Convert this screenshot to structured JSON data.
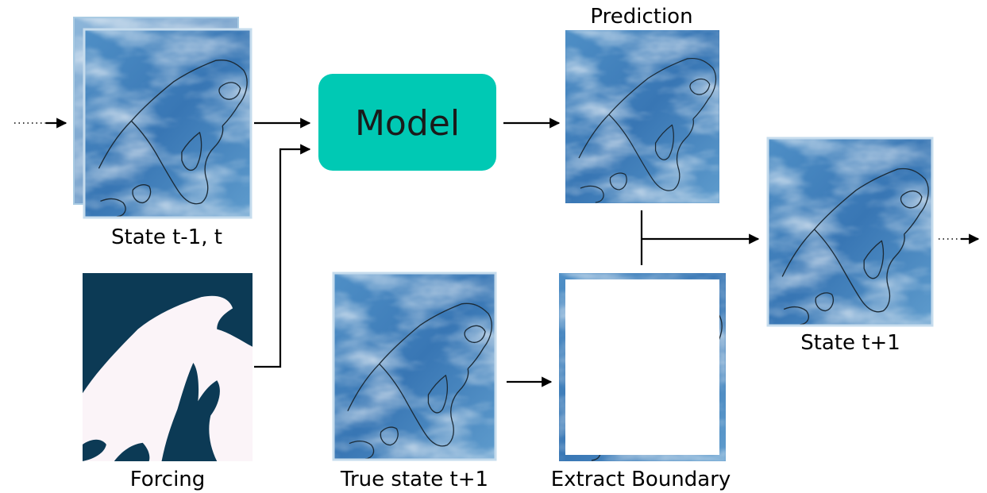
{
  "labels": {
    "state_prev": "State t-1, t",
    "forcing": "Forcing",
    "model": "Model",
    "prediction": "Prediction",
    "true_state": "True state t+1",
    "extract_boundary": "Extract Boundary",
    "state_next": "State t+1"
  },
  "colors": {
    "model_box": "#00c9b4",
    "forcing_sea": "#0c3a55",
    "forcing_land": "#fbf4f8",
    "field_blue": "#3f7fbb",
    "field_light": "#dfeef7"
  },
  "icons": [
    "weather-field-map",
    "land-sea-mask-map"
  ]
}
